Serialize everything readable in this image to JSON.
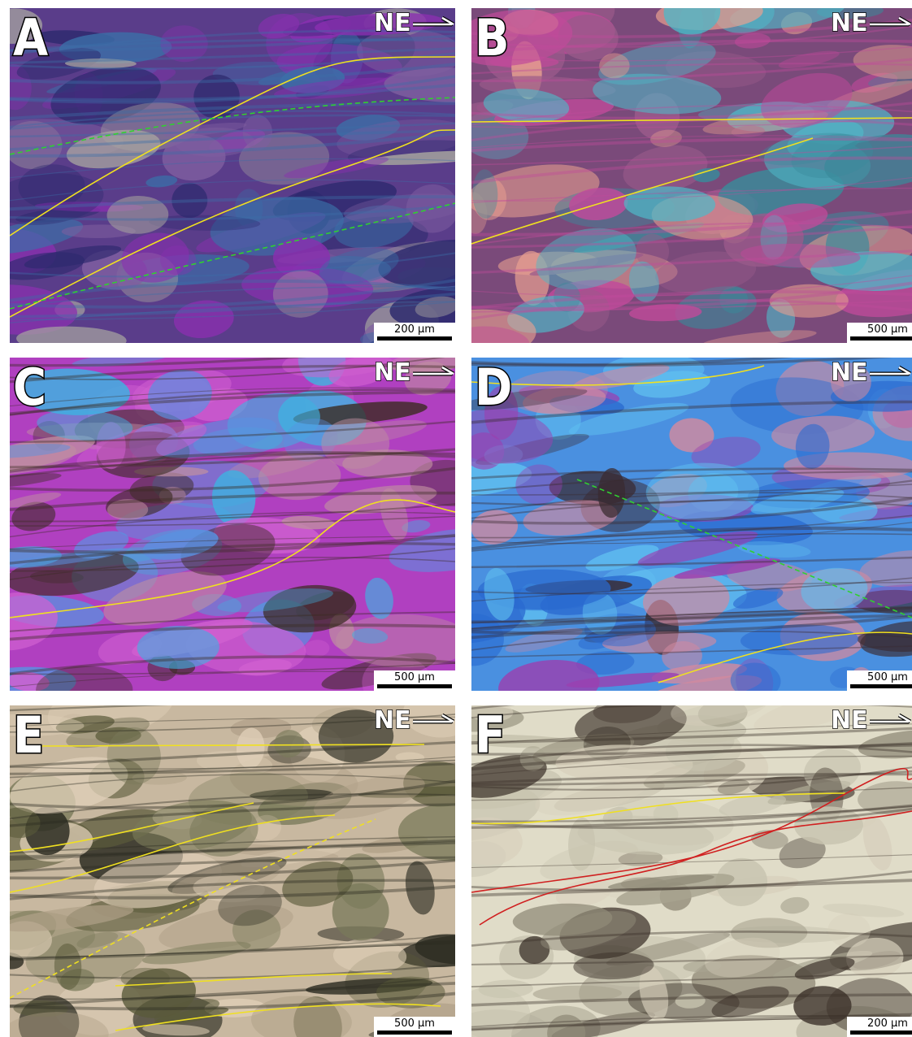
{
  "panels": [
    {
      "label": "A",
      "orientation": "NE",
      "scale": "200 µm"
    },
    {
      "label": "B",
      "orientation": "NE",
      "scale": "500 µm"
    },
    {
      "label": "C",
      "orientation": "NE",
      "scale": "500 µm"
    },
    {
      "label": "D",
      "orientation": "NE",
      "scale": "500 µm"
    },
    {
      "label": "E",
      "orientation": "NE",
      "scale": "500 µm"
    },
    {
      "label": "F",
      "orientation": "NE",
      "scale": "200 µm"
    }
  ]
}
